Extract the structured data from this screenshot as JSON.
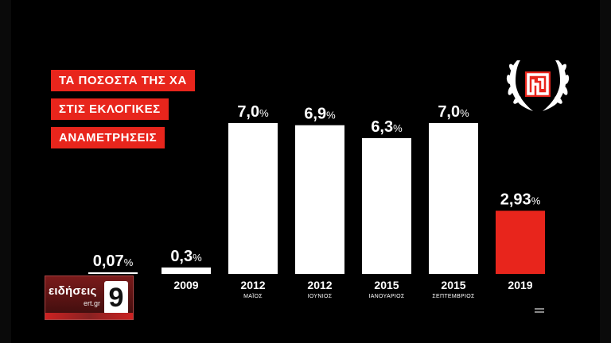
{
  "title_lines": [
    "ΤΑ ΠΟΣΟΣΤΑ ΤΗΣ ΧΑ",
    "ΣΤΙΣ ΕΚΛΟΓΙΚΕΣ",
    "ΑΝΑΜΕΤΡΗΣΕΙΣ"
  ],
  "logo": {
    "text": "ειδήσεις",
    "sub": "ert.gr",
    "number": "9"
  },
  "colors": {
    "background": "#000000",
    "bar_default": "#ffffff",
    "bar_highlight": "#e8251c",
    "title_box": "#e8251c"
  },
  "chart_data": {
    "type": "bar",
    "title": "ΤΑ ΠΟΣΟΣΤΑ ΤΗΣ ΧΑ ΣΤΙΣ ΕΚΛΟΓΙΚΕΣ ΑΝΑΜΕΤΡΗΣΕΙΣ",
    "unit": "%",
    "categories": [
      "",
      "2009",
      "2012",
      "2012",
      "2015",
      "2015",
      "2019"
    ],
    "sublabels": [
      "",
      "",
      "ΜΑΪΟΣ",
      "ΙΟΥΝΙΟΣ",
      "ΙΑΝΟΥΑΡΙΟΣ",
      "ΣΕΠΤΕΜΒΡΙΟΣ",
      ""
    ],
    "values": [
      0.07,
      0.3,
      7.0,
      6.9,
      6.3,
      7.0,
      2.93
    ],
    "value_labels": [
      "0,07",
      "0,3",
      "7,0",
      "6,9",
      "6,3",
      "7,0",
      "2,93"
    ],
    "highlight_index": 6,
    "ylim": [
      0,
      7.0
    ],
    "grid": false,
    "legend": "none"
  }
}
